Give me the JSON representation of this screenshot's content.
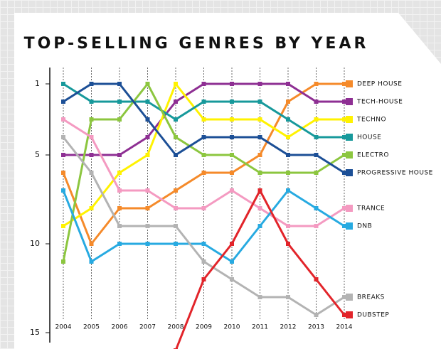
{
  "chart_data": {
    "type": "bump",
    "title": "TOP-SELLING GENRES BY YEAR",
    "categories": [
      "2004",
      "2005",
      "2006",
      "2007",
      "2008",
      "2009",
      "2010",
      "2011",
      "2012",
      "2013",
      "2014"
    ],
    "ylim": [
      1,
      15
    ],
    "yticks": [
      1,
      5,
      10,
      15
    ],
    "y_inverted": true,
    "series": [
      {
        "name": "DEEP HOUSE",
        "color": "#f58a2a",
        "values": [
          6,
          10,
          8,
          8,
          7,
          6,
          6,
          5,
          2,
          1,
          1
        ]
      },
      {
        "name": "TECH-HOUSE",
        "color": "#8e2f93",
        "values": [
          5,
          5,
          5,
          4,
          2,
          1,
          1,
          1,
          1,
          2,
          2
        ]
      },
      {
        "name": "TECHNO",
        "color": "#fff200",
        "values": [
          9,
          8,
          6,
          5,
          1,
          3,
          3,
          3,
          4,
          3,
          3
        ]
      },
      {
        "name": "HOUSE",
        "color": "#17999b",
        "values": [
          1,
          2,
          2,
          2,
          3,
          2,
          2,
          2,
          3,
          4,
          4
        ]
      },
      {
        "name": "ELECTRO",
        "color": "#8cc63f",
        "values": [
          11,
          3,
          3,
          1,
          4,
          5,
          5,
          6,
          6,
          6,
          5
        ]
      },
      {
        "name": "PROGRESSIVE HOUSE",
        "color": "#1c4f96",
        "values": [
          2,
          1,
          1,
          3,
          5,
          4,
          4,
          4,
          5,
          5,
          6
        ]
      },
      {
        "name": "TRANCE",
        "color": "#f49ac1",
        "values": [
          3,
          4,
          7,
          7,
          8,
          8,
          7,
          8,
          9,
          9,
          8
        ]
      },
      {
        "name": "DNB",
        "color": "#27aae1",
        "values": [
          7,
          11,
          10,
          10,
          10,
          10,
          11,
          9,
          7,
          8,
          9
        ]
      },
      {
        "name": "BREAKS",
        "color": "#b3b3b3",
        "values": [
          4,
          6,
          9,
          9,
          9,
          11,
          12,
          13,
          13,
          14,
          13
        ]
      },
      {
        "name": "DUBSTEP",
        "color": "#e2242a",
        "values": [
          null,
          null,
          null,
          null,
          16,
          12,
          10,
          7,
          10,
          12,
          14
        ]
      }
    ]
  }
}
